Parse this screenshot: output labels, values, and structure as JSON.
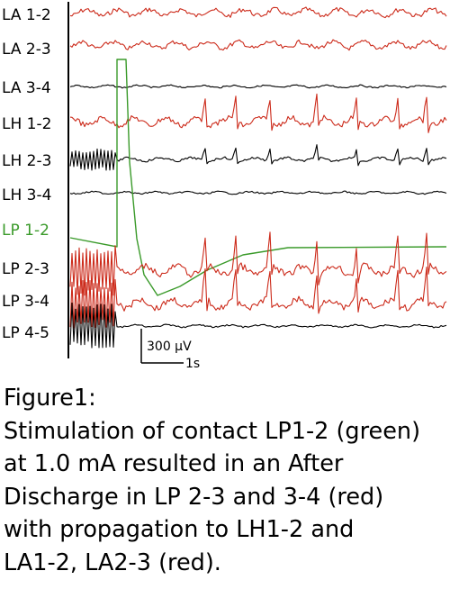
{
  "chart_data": {
    "type": "line",
    "title": "",
    "xlabel": "",
    "ylabel": "",
    "series": [
      {
        "name": "LA 1-2",
        "color": "#cc2a1a",
        "pattern": "moderate"
      },
      {
        "name": "LA 2-3",
        "color": "#cc2a1a",
        "pattern": "moderate"
      },
      {
        "name": "LA 3-4",
        "color": "#000000",
        "pattern": "quiet"
      },
      {
        "name": "LH 1-2",
        "color": "#cc2a1a",
        "pattern": "spiky"
      },
      {
        "name": "LH 2-3",
        "color": "#000000",
        "pattern": "small-spikes"
      },
      {
        "name": "LH 3-4",
        "color": "#000000",
        "pattern": "quiet"
      },
      {
        "name": "LP 1-2",
        "color": "#3a9a2a",
        "pattern": "stimulation"
      },
      {
        "name": "LP 2-3",
        "color": "#cc2a1a",
        "pattern": "after-discharge"
      },
      {
        "name": "LP 3-4",
        "color": "#cc2a1a",
        "pattern": "after-discharge"
      },
      {
        "name": "LP 4-5",
        "color": "#000000",
        "pattern": "quiet"
      }
    ],
    "scale_bar": {
      "amplitude": "300 µV",
      "time": "1s"
    }
  },
  "caption": {
    "lines": [
      "Figure1:",
      "Stimulation of contact LP1-2 (green)",
      "at 1.0 mA resulted  in an After",
      "Discharge in LP 2-3 and 3-4 (red)",
      "with propagation to LH1-2 and",
      "LA1-2, LA2-3 (red)."
    ]
  }
}
